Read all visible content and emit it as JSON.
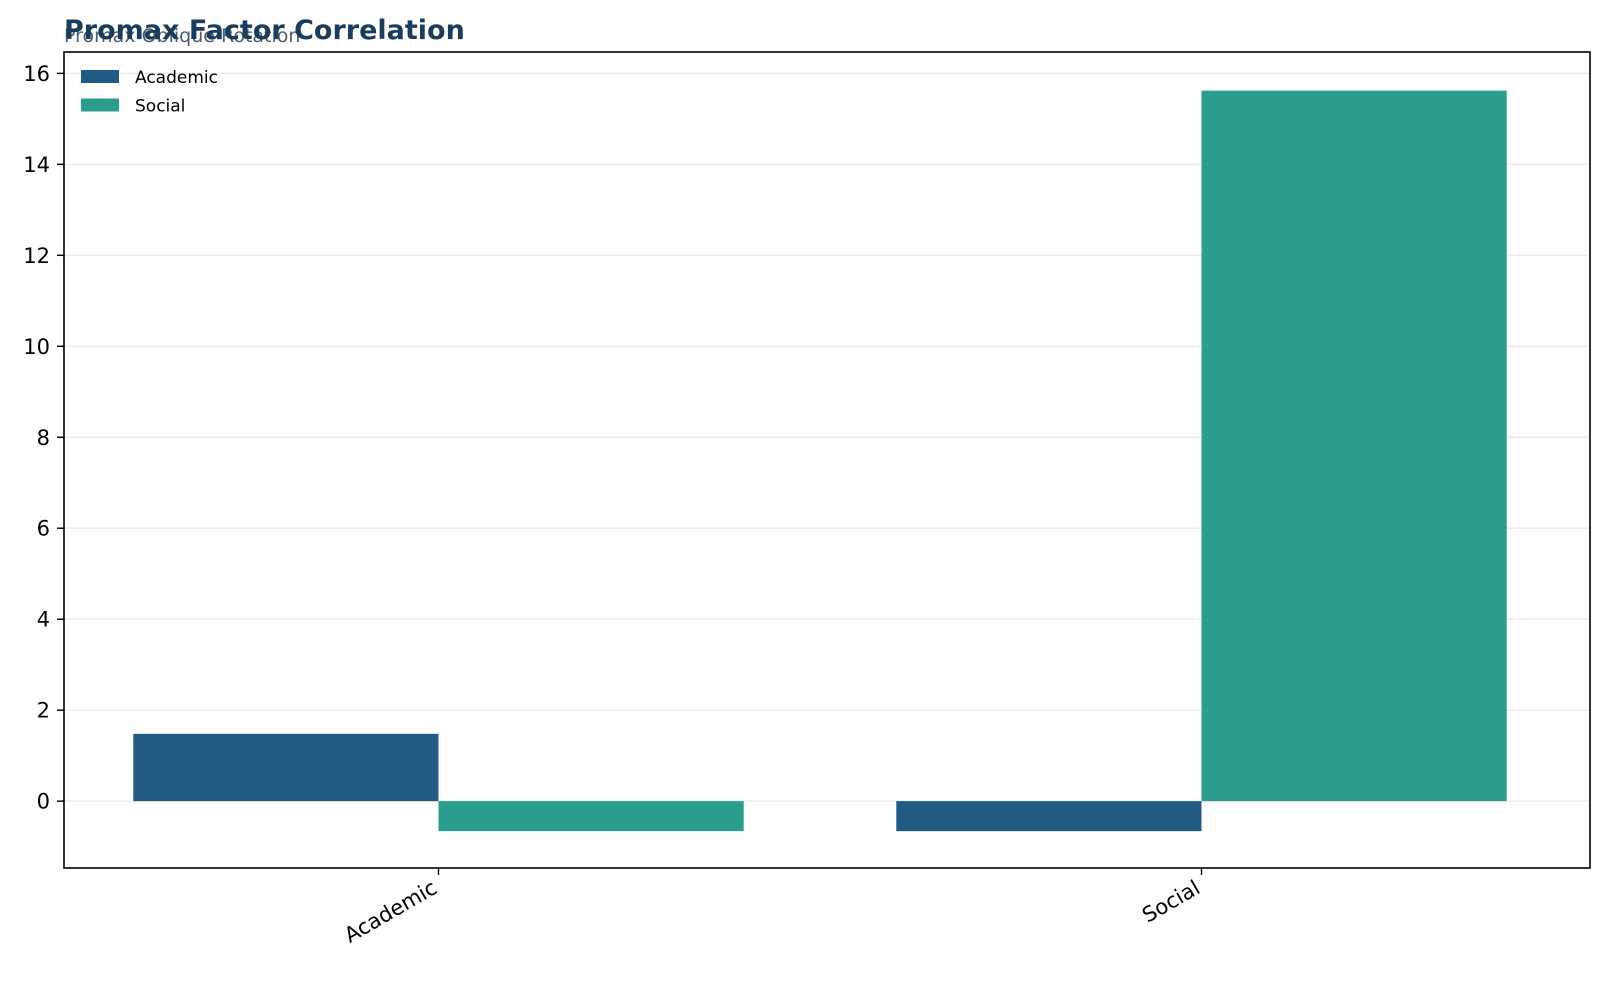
{
  "chart_data": {
    "type": "bar",
    "title": "Promax Factor Correlation",
    "subtitle": "Promax Oblique Rotation",
    "xlabel": "",
    "ylabel": "",
    "categories": [
      "Academic",
      "Social"
    ],
    "series": [
      {
        "name": "Academic",
        "values": [
          1.48,
          -0.66
        ],
        "color": "#215a82"
      },
      {
        "name": "Social",
        "values": [
          -0.66,
          15.62
        ],
        "color": "#2a9d8c"
      }
    ],
    "ylim": [
      -1.47,
      16.47
    ],
    "yticks": [
      0,
      2,
      4,
      6,
      8,
      10,
      12,
      14,
      16
    ],
    "grid": "horizontal",
    "legend_position": "top-left"
  },
  "colors": {
    "title": "#1a3d5c",
    "subtitle": "#4a5e70",
    "grid": "#ebebeb",
    "axes": "#000000"
  }
}
